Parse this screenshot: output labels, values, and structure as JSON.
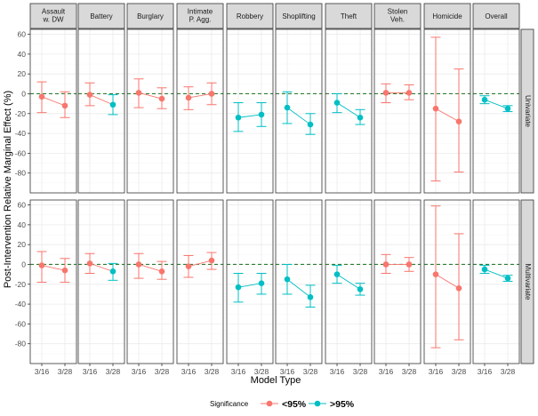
{
  "chart_data": {
    "type": "faceted-pointrange",
    "xlabel": "Model Type",
    "ylabel": "Post-Intervention Relative Marginal Effect (%)",
    "x": [
      "3/16",
      "3/28"
    ],
    "ylim": [
      -100,
      65
    ],
    "yticks": [
      60,
      40,
      20,
      0,
      -20,
      -40,
      -60,
      -80
    ],
    "reference_line": 0,
    "columns": [
      {
        "label": [
          "Assault",
          "w. DW"
        ]
      },
      {
        "label": [
          "Battery"
        ]
      },
      {
        "label": [
          "Burglary"
        ]
      },
      {
        "label": [
          "Intimate",
          "P. Agg."
        ]
      },
      {
        "label": [
          "Robbery"
        ]
      },
      {
        "label": [
          "Shoplifting"
        ]
      },
      {
        "label": [
          "Theft"
        ]
      },
      {
        "label": [
          "Stolen",
          "Veh."
        ]
      },
      {
        "label": [
          "Homicide"
        ]
      },
      {
        "label": [
          "Overall"
        ]
      }
    ],
    "rows": [
      {
        "label": "Univariate",
        "panels": [
          {
            "points": [
              {
                "x": "3/16",
                "y": -3,
                "lo": -19,
                "hi": 12,
                "sig": "<95%"
              },
              {
                "x": "3/28",
                "y": -12,
                "lo": -24,
                "hi": 2,
                "sig": "<95%"
              }
            ]
          },
          {
            "points": [
              {
                "x": "3/16",
                "y": -1,
                "lo": -12,
                "hi": 11,
                "sig": "<95%"
              },
              {
                "x": "3/28",
                "y": -11,
                "lo": -21,
                "hi": -1,
                "sig": ">95%"
              }
            ]
          },
          {
            "points": [
              {
                "x": "3/16",
                "y": 1,
                "lo": -14,
                "hi": 15,
                "sig": "<95%"
              },
              {
                "x": "3/28",
                "y": -5,
                "lo": -15,
                "hi": 6,
                "sig": "<95%"
              }
            ]
          },
          {
            "points": [
              {
                "x": "3/16",
                "y": -4,
                "lo": -16,
                "hi": 7,
                "sig": "<95%"
              },
              {
                "x": "3/28",
                "y": 0,
                "lo": -11,
                "hi": 11,
                "sig": "<95%"
              }
            ]
          },
          {
            "points": [
              {
                "x": "3/16",
                "y": -24,
                "lo": -38,
                "hi": -9,
                "sig": ">95%"
              },
              {
                "x": "3/28",
                "y": -21,
                "lo": -33,
                "hi": -9,
                "sig": ">95%"
              }
            ]
          },
          {
            "points": [
              {
                "x": "3/16",
                "y": -14,
                "lo": -30,
                "hi": 2,
                "sig": ">95%"
              },
              {
                "x": "3/28",
                "y": -31,
                "lo": -41,
                "hi": -20,
                "sig": ">95%"
              }
            ]
          },
          {
            "points": [
              {
                "x": "3/16",
                "y": -9,
                "lo": -19,
                "hi": 0,
                "sig": ">95%"
              },
              {
                "x": "3/28",
                "y": -24,
                "lo": -31,
                "hi": -16,
                "sig": ">95%"
              }
            ]
          },
          {
            "points": [
              {
                "x": "3/16",
                "y": 1,
                "lo": -9,
                "hi": 10,
                "sig": "<95%"
              },
              {
                "x": "3/28",
                "y": 1,
                "lo": -6,
                "hi": 9,
                "sig": "<95%"
              }
            ]
          },
          {
            "points": [
              {
                "x": "3/16",
                "y": -15,
                "lo": -88,
                "hi": 57,
                "sig": "<95%"
              },
              {
                "x": "3/28",
                "y": -28,
                "lo": -79,
                "hi": 25,
                "sig": "<95%"
              }
            ]
          },
          {
            "points": [
              {
                "x": "3/16",
                "y": -6,
                "lo": -10,
                "hi": -2,
                "sig": ">95%"
              },
              {
                "x": "3/28",
                "y": -15,
                "lo": -18,
                "hi": -12,
                "sig": ">95%"
              }
            ]
          }
        ]
      },
      {
        "label": "Multivariate",
        "panels": [
          {
            "points": [
              {
                "x": "3/16",
                "y": -1,
                "lo": -18,
                "hi": 13,
                "sig": "<95%"
              },
              {
                "x": "3/28",
                "y": -6,
                "lo": -18,
                "hi": 6,
                "sig": "<95%"
              }
            ]
          },
          {
            "points": [
              {
                "x": "3/16",
                "y": 1,
                "lo": -9,
                "hi": 11,
                "sig": "<95%"
              },
              {
                "x": "3/28",
                "y": -7,
                "lo": -16,
                "hi": 1,
                "sig": ">95%"
              }
            ]
          },
          {
            "points": [
              {
                "x": "3/16",
                "y": 0,
                "lo": -14,
                "hi": 11,
                "sig": "<95%"
              },
              {
                "x": "3/28",
                "y": -7,
                "lo": -15,
                "hi": 3,
                "sig": "<95%"
              }
            ]
          },
          {
            "points": [
              {
                "x": "3/16",
                "y": -2,
                "lo": -13,
                "hi": 9,
                "sig": "<95%"
              },
              {
                "x": "3/28",
                "y": 4,
                "lo": -5,
                "hi": 12,
                "sig": "<95%"
              }
            ]
          },
          {
            "points": [
              {
                "x": "3/16",
                "y": -23,
                "lo": -38,
                "hi": -9,
                "sig": ">95%"
              },
              {
                "x": "3/28",
                "y": -19,
                "lo": -30,
                "hi": -9,
                "sig": ">95%"
              }
            ]
          },
          {
            "points": [
              {
                "x": "3/16",
                "y": -15,
                "lo": -30,
                "hi": 0,
                "sig": ">95%"
              },
              {
                "x": "3/28",
                "y": -33,
                "lo": -43,
                "hi": -21,
                "sig": ">95%"
              }
            ]
          },
          {
            "points": [
              {
                "x": "3/16",
                "y": -10,
                "lo": -19,
                "hi": -1,
                "sig": ">95%"
              },
              {
                "x": "3/28",
                "y": -25,
                "lo": -31,
                "hi": -19,
                "sig": ">95%"
              }
            ]
          },
          {
            "points": [
              {
                "x": "3/16",
                "y": 0,
                "lo": -9,
                "hi": 10,
                "sig": "<95%"
              },
              {
                "x": "3/28",
                "y": 0,
                "lo": -7,
                "hi": 7,
                "sig": "<95%"
              }
            ]
          },
          {
            "points": [
              {
                "x": "3/16",
                "y": -10,
                "lo": -84,
                "hi": 59,
                "sig": "<95%"
              },
              {
                "x": "3/28",
                "y": -24,
                "lo": -76,
                "hi": 31,
                "sig": "<95%"
              }
            ]
          },
          {
            "points": [
              {
                "x": "3/16",
                "y": -5,
                "lo": -9,
                "hi": -1,
                "sig": ">95%"
              },
              {
                "x": "3/28",
                "y": -14,
                "lo": -17,
                "hi": -11,
                "sig": ">95%"
              }
            ]
          }
        ]
      }
    ],
    "legend": {
      "title": "Significance",
      "position": "bottom",
      "items": [
        {
          "key": "<95%",
          "label": "<95%",
          "color": "#F8766D"
        },
        {
          "key": ">95%",
          "label": ">95%",
          "color": "#00BFC4"
        }
      ]
    },
    "colors": {
      "<95%": "#F8766D",
      ">95%": "#00BFC4",
      "refline": "#2E7D32",
      "strip_fill": "#D9D9D9",
      "grid_major": "#EBEBEB",
      "grid_minor": "#F5F5F5",
      "border": "#333333"
    }
  }
}
